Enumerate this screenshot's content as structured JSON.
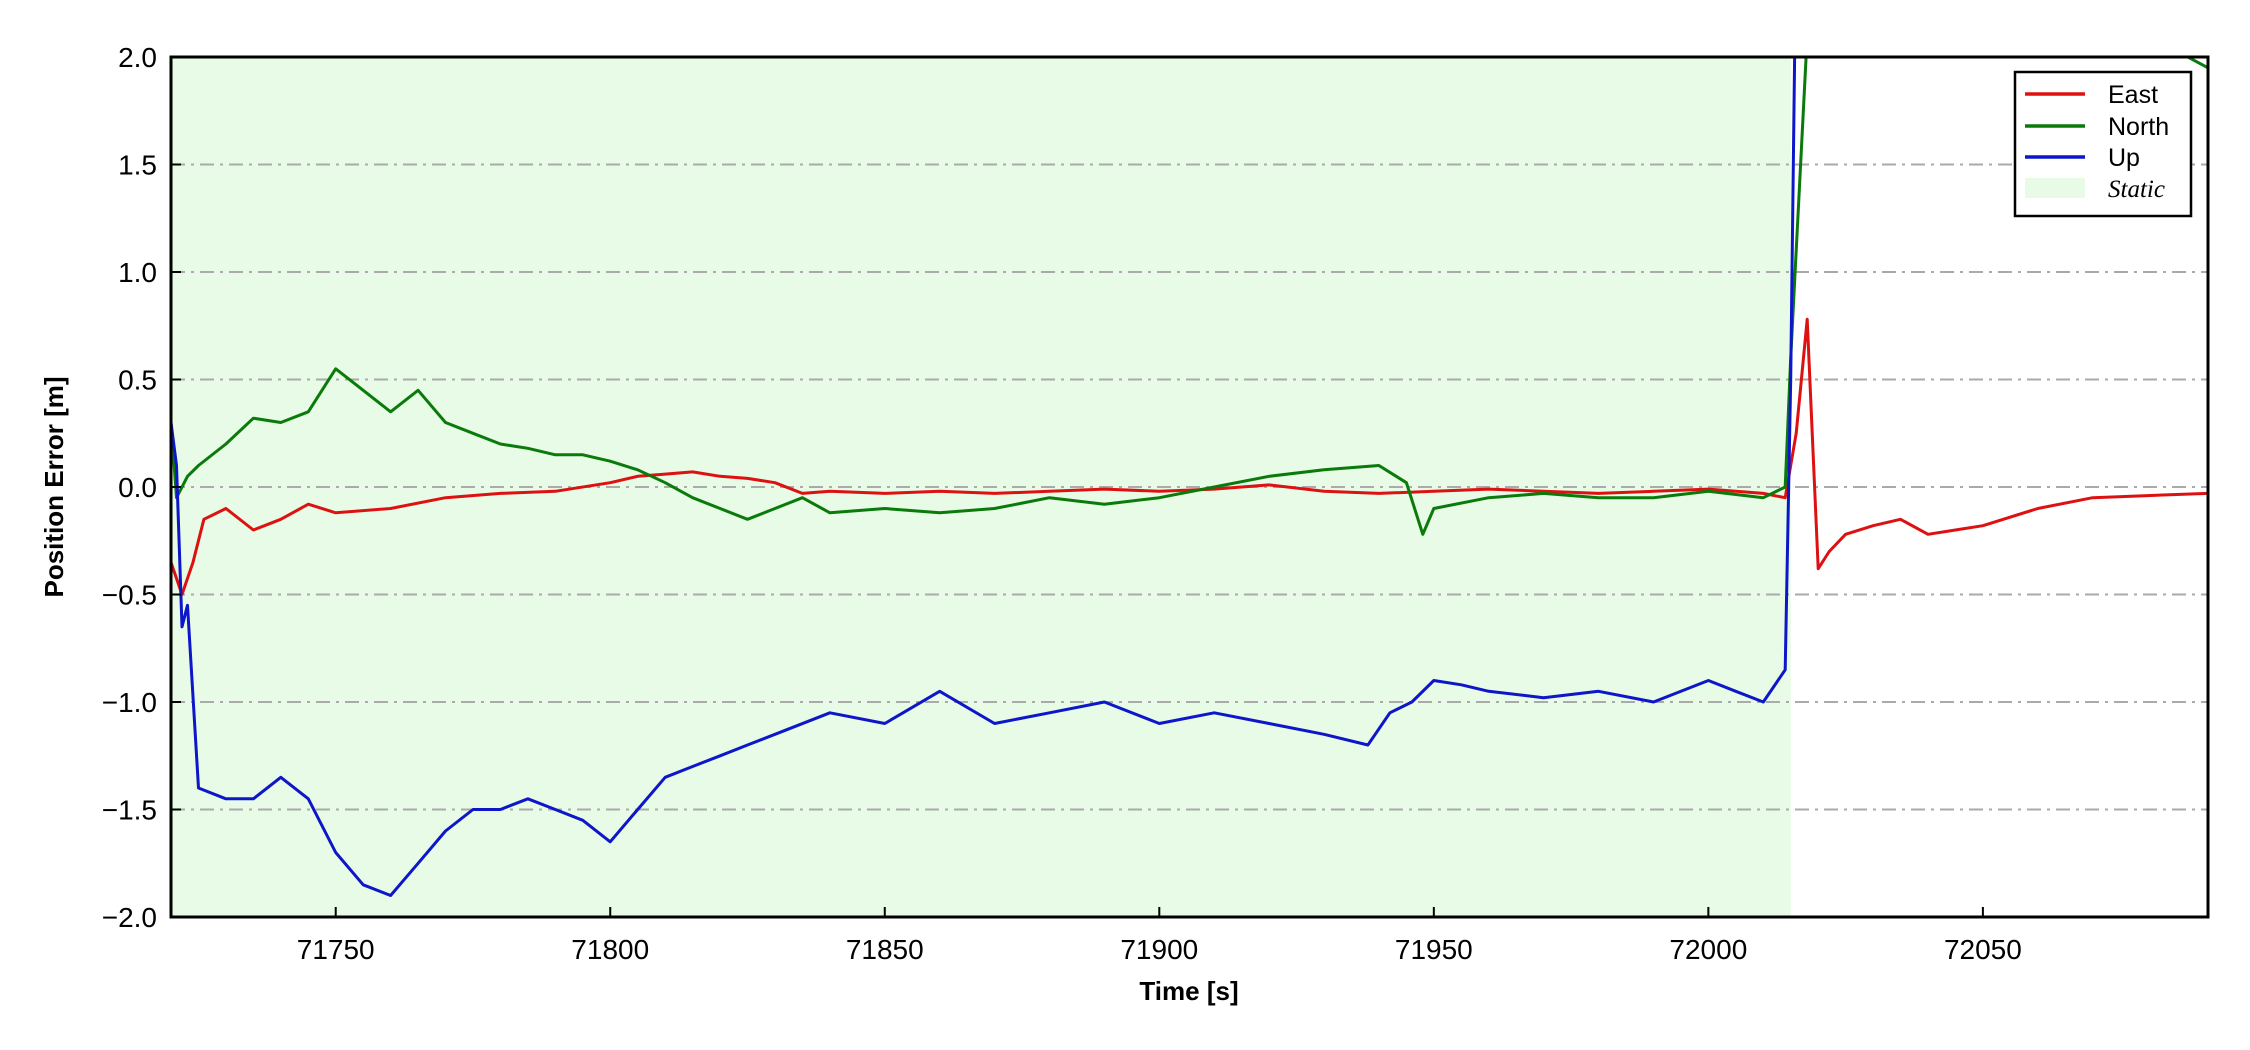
{
  "chart_data": {
    "type": "line",
    "xlabel": "Time [s]",
    "ylabel": "Position Error [m]",
    "xlim": [
      71720,
      72091
    ],
    "ylim": [
      -2.0,
      2.0
    ],
    "x_ticks": [
      71750,
      71800,
      71850,
      71900,
      71950,
      72000,
      72050
    ],
    "y_ticks": [
      -2.0,
      -1.5,
      -1.0,
      -0.5,
      0.0,
      0.5,
      1.0,
      1.5,
      2.0
    ],
    "x_tick_labels": [
      "71750",
      "71800",
      "71850",
      "71900",
      "71950",
      "72000",
      "72050"
    ],
    "y_tick_labels": [
      "−2.0",
      "−1.5",
      "−1.0",
      "−0.5",
      "0.0",
      "0.5",
      "1.0",
      "1.5",
      "2.0"
    ],
    "grid": "horizontal dash-dot",
    "legend_position": "top-right",
    "static_region": {
      "label": "Static",
      "x_start": 71720,
      "x_end": 72015,
      "color": "#e8fbe6"
    },
    "series": [
      {
        "name": "East",
        "color": "#dd1111",
        "x": [
          71720,
          71722,
          71724,
          71726,
          71730,
          71735,
          71740,
          71745,
          71750,
          71760,
          71770,
          71780,
          71790,
          71800,
          71805,
          71810,
          71815,
          71820,
          71825,
          71830,
          71835,
          71840,
          71850,
          71860,
          71870,
          71880,
          71890,
          71900,
          71910,
          71920,
          71930,
          71940,
          71950,
          71960,
          71970,
          71980,
          71990,
          72000,
          72010,
          72014,
          72016,
          72018,
          72020,
          72022,
          72025,
          72030,
          72035,
          72040,
          72045,
          72050,
          72060,
          72070,
          72080,
          72091
        ],
        "y": [
          -0.35,
          -0.5,
          -0.35,
          -0.15,
          -0.1,
          -0.2,
          -0.15,
          -0.08,
          -0.12,
          -0.1,
          -0.05,
          -0.03,
          -0.02,
          0.02,
          0.05,
          0.06,
          0.07,
          0.05,
          0.04,
          0.02,
          -0.03,
          -0.02,
          -0.03,
          -0.02,
          -0.03,
          -0.02,
          -0.01,
          -0.02,
          -0.01,
          0.01,
          -0.02,
          -0.03,
          -0.02,
          -0.01,
          -0.02,
          -0.03,
          -0.02,
          -0.01,
          -0.03,
          -0.05,
          0.25,
          0.78,
          -0.38,
          -0.3,
          -0.22,
          -0.18,
          -0.15,
          -0.22,
          -0.2,
          -0.18,
          -0.1,
          -0.05,
          -0.04,
          -0.03
        ]
      },
      {
        "name": "North",
        "color": "#0a7a0a",
        "x": [
          71720,
          71721,
          71723,
          71725,
          71730,
          71735,
          71740,
          71745,
          71750,
          71755,
          71760,
          71765,
          71770,
          71775,
          71780,
          71785,
          71790,
          71795,
          71800,
          71805,
          71810,
          71815,
          71820,
          71825,
          71830,
          71835,
          71840,
          71850,
          71860,
          71870,
          71880,
          71890,
          71900,
          71910,
          71920,
          71930,
          71940,
          71945,
          71948,
          71950,
          71960,
          71970,
          71980,
          71990,
          72000,
          72010,
          72014,
          72015,
          72017,
          72019,
          72080,
          72091
        ],
        "y": [
          0.3,
          -0.05,
          0.05,
          0.1,
          0.2,
          0.32,
          0.3,
          0.35,
          0.55,
          0.45,
          0.35,
          0.45,
          0.3,
          0.25,
          0.2,
          0.18,
          0.15,
          0.15,
          0.12,
          0.08,
          0.02,
          -0.05,
          -0.1,
          -0.15,
          -0.1,
          -0.05,
          -0.12,
          -0.1,
          -0.12,
          -0.1,
          -0.05,
          -0.08,
          -0.05,
          0.0,
          0.05,
          0.08,
          0.1,
          0.02,
          -0.22,
          -0.1,
          -0.05,
          -0.03,
          -0.05,
          -0.05,
          -0.02,
          -0.05,
          0.0,
          0.6,
          1.6,
          2.6,
          2.1,
          1.95
        ]
      },
      {
        "name": "Up",
        "color": "#0d16c8",
        "x": [
          71720,
          71721,
          71722,
          71723,
          71725,
          71730,
          71735,
          71740,
          71745,
          71750,
          71755,
          71760,
          71765,
          71770,
          71775,
          71780,
          71785,
          71790,
          71795,
          71800,
          71805,
          71810,
          71815,
          71820,
          71825,
          71830,
          71840,
          71850,
          71860,
          71870,
          71880,
          71890,
          71900,
          71910,
          71920,
          71930,
          71938,
          71942,
          71946,
          71950,
          71955,
          71960,
          71970,
          71980,
          71990,
          72000,
          72005,
          72010,
          72014,
          72015,
          72016
        ],
        "y": [
          0.3,
          0.1,
          -0.65,
          -0.55,
          -1.4,
          -1.45,
          -1.45,
          -1.35,
          -1.45,
          -1.7,
          -1.85,
          -1.9,
          -1.75,
          -1.6,
          -1.5,
          -1.5,
          -1.45,
          -1.5,
          -1.55,
          -1.65,
          -1.5,
          -1.35,
          -1.3,
          -1.25,
          -1.2,
          -1.15,
          -1.05,
          -1.1,
          -0.95,
          -1.1,
          -1.05,
          -1.0,
          -1.1,
          -1.05,
          -1.1,
          -1.15,
          -1.2,
          -1.05,
          -1.0,
          -0.9,
          -0.92,
          -0.95,
          -0.98,
          -0.95,
          -1.0,
          -0.9,
          -0.95,
          -1.0,
          -0.85,
          0.5,
          2.6
        ]
      }
    ]
  }
}
